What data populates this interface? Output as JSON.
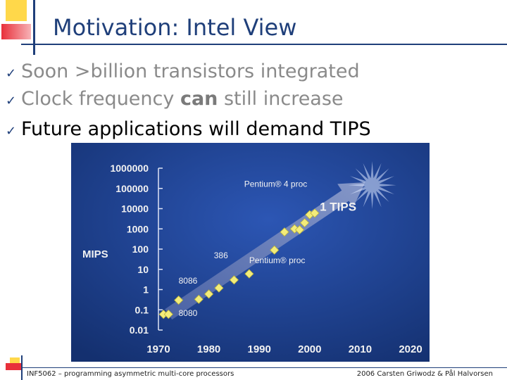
{
  "slide": {
    "title": "Motivation: Intel View",
    "bullets": [
      {
        "pre": "Soon >billion transistors integrated",
        "bold": "",
        "post": ""
      },
      {
        "pre": "Clock frequency ",
        "bold": "can",
        "post": " still increase"
      },
      {
        "pre": "Future applications will demand TIPS",
        "bold": "",
        "post": ""
      }
    ],
    "footer_left": "INF5062 – programming asymmetric multi-core processors",
    "footer_right": "2006  Carsten Griwodz & Pål Halvorsen"
  },
  "colors": {
    "title": "#1f3f7a",
    "chart_bg": "#1b3c8f",
    "marker": "#f3ec7a",
    "deco_yellow": "#ffd84a",
    "deco_red": "#e8303a",
    "deco_blue": "#1f3f7a"
  },
  "chart_data": {
    "type": "scatter",
    "title": "",
    "xlabel": "",
    "ylabel": "MIPS",
    "y_scale": "log",
    "xlim": [
      1970,
      2020
    ],
    "ylim": [
      0.01,
      1000000
    ],
    "x_ticks": [
      "1970",
      "1980",
      "1990",
      "2000",
      "2010",
      "2020"
    ],
    "y_ticks": [
      "0.01",
      "0.1",
      "1",
      "10",
      "100",
      "1000",
      "10000",
      "100000",
      "1000000"
    ],
    "points": [
      {
        "x": 1971,
        "y": 0.06
      },
      {
        "x": 1972,
        "y": 0.06
      },
      {
        "x": 1974,
        "y": 0.3
      },
      {
        "x": 1978,
        "y": 0.33
      },
      {
        "x": 1980,
        "y": 0.6
      },
      {
        "x": 1982,
        "y": 1.2
      },
      {
        "x": 1985,
        "y": 3
      },
      {
        "x": 1988,
        "y": 6
      },
      {
        "x": 1993,
        "y": 90
      },
      {
        "x": 1995,
        "y": 700
      },
      {
        "x": 1997,
        "y": 1000
      },
      {
        "x": 1998,
        "y": 900
      },
      {
        "x": 1999,
        "y": 2000
      },
      {
        "x": 2000,
        "y": 5000
      },
      {
        "x": 2001,
        "y": 6000
      }
    ],
    "projection": {
      "from": {
        "x": 1972,
        "y": 0.06
      },
      "to": {
        "x": 2011,
        "y": 200000
      }
    },
    "annotations": [
      {
        "text": "8086",
        "x": 1974,
        "y": 2
      },
      {
        "text": "8080",
        "x": 1974,
        "y": 0.05
      },
      {
        "text": "386",
        "x": 1981,
        "y": 35
      },
      {
        "text": "Pentium® proc",
        "x": 1988,
        "y": 20
      },
      {
        "text": "Pentium® 4 proc",
        "x": 1987,
        "y": 120000
      },
      {
        "text": "1 TIPS",
        "x": 2002,
        "y": 8000
      }
    ]
  }
}
